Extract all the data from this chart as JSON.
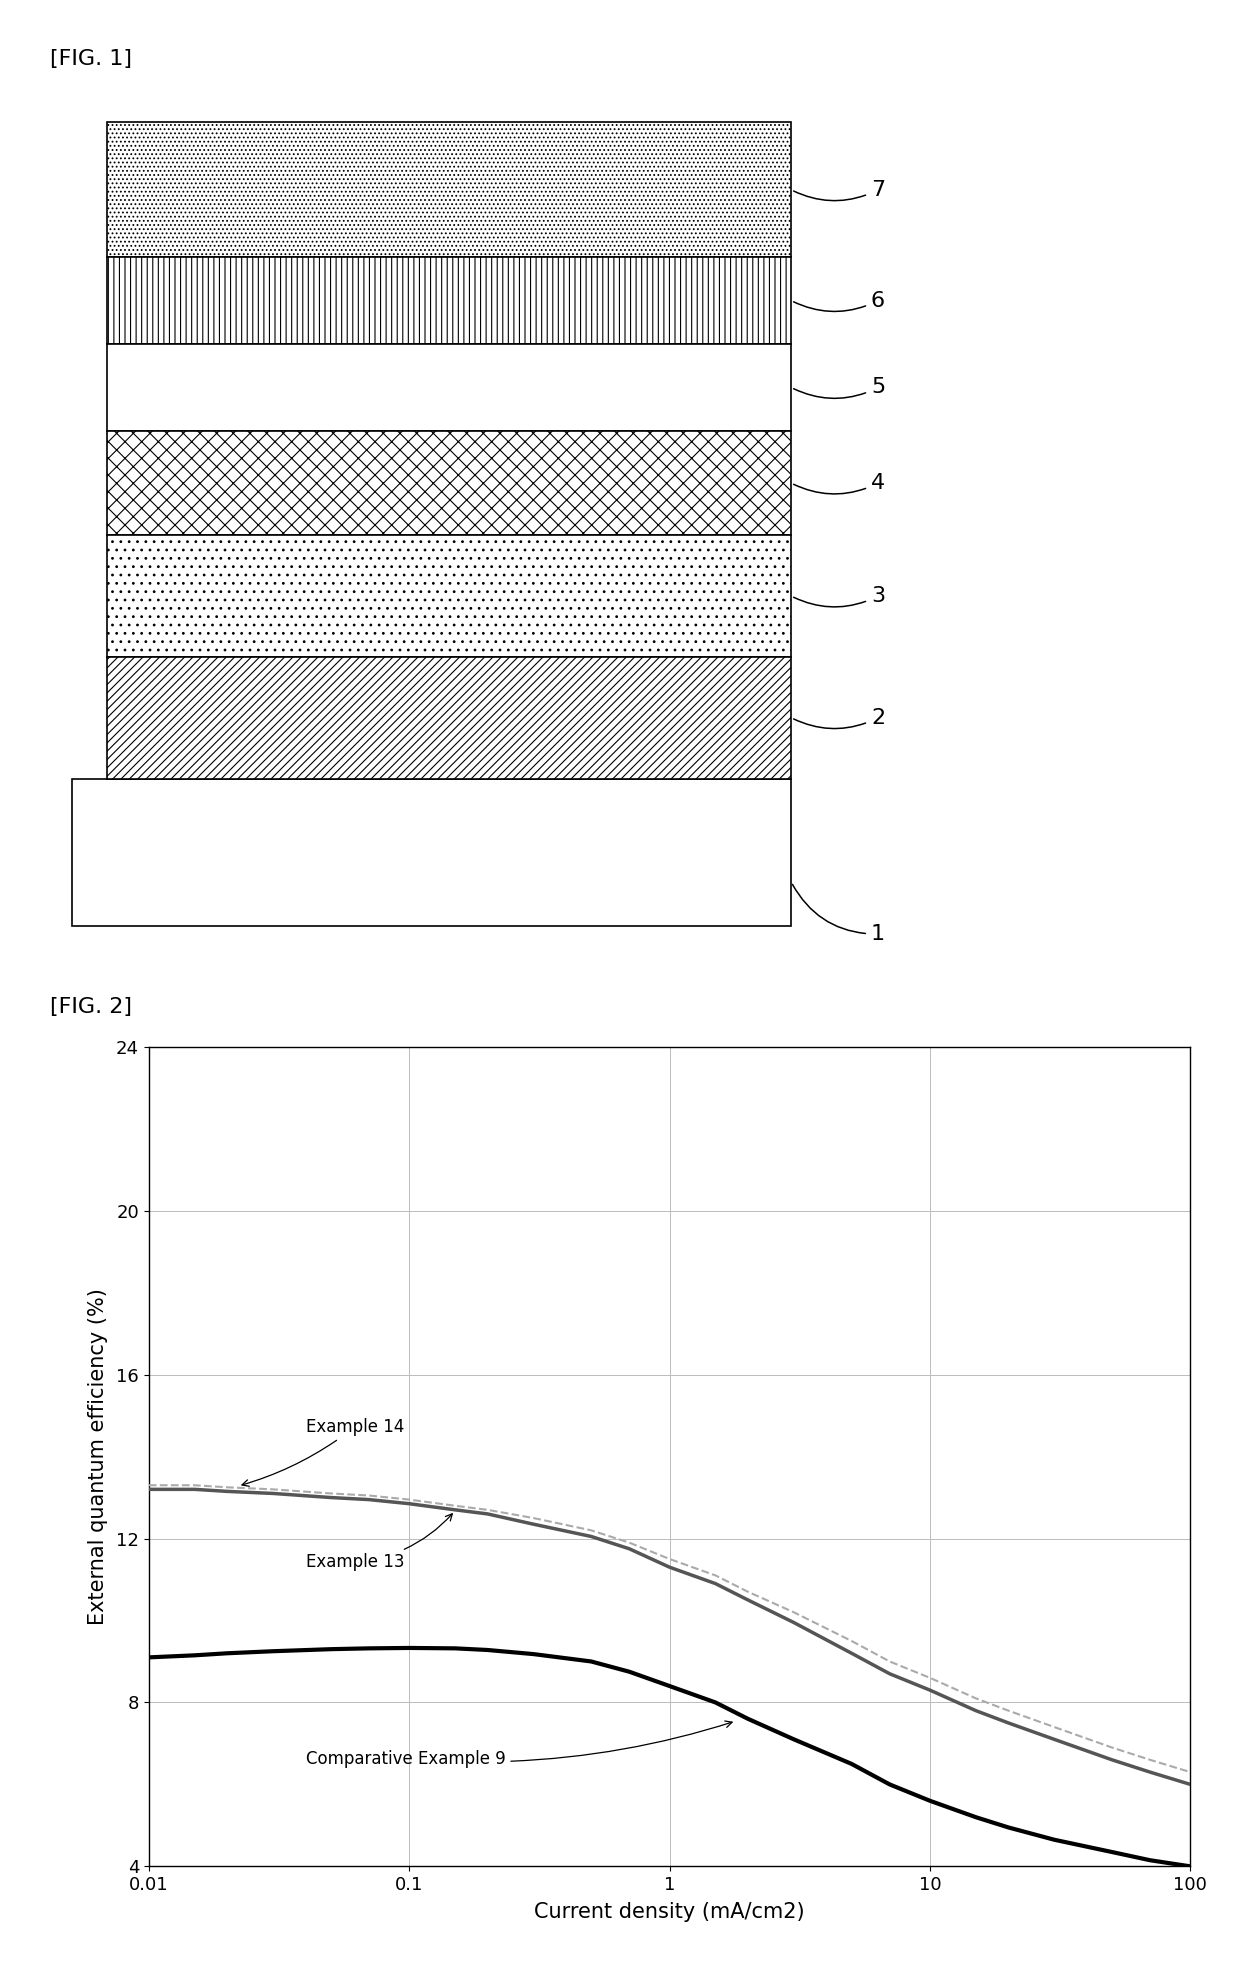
{
  "fig1_label": "[FIG. 1]",
  "fig2_label": "[FIG. 2]",
  "xlabel": "Current density (mA/cm2)",
  "ylabel": "External quantum efficiency (%)",
  "xmin": 0.01,
  "xmax": 100,
  "ymin": 4,
  "ymax": 24,
  "yticks": [
    4,
    8,
    12,
    16,
    20,
    24
  ],
  "xticks": [
    0.01,
    0.1,
    1,
    10,
    100
  ],
  "series": [
    {
      "label": "Example 14",
      "color": "#aaaaaa",
      "linewidth": 1.5,
      "style": "--",
      "x": [
        0.01,
        0.015,
        0.02,
        0.03,
        0.05,
        0.07,
        0.1,
        0.15,
        0.2,
        0.3,
        0.5,
        0.7,
        1.0,
        1.5,
        2.0,
        3.0,
        5.0,
        7.0,
        10.0,
        15.0,
        20.0,
        30.0,
        50.0,
        70.0,
        100.0
      ],
      "y": [
        13.3,
        13.3,
        13.25,
        13.2,
        13.1,
        13.05,
        12.95,
        12.8,
        12.7,
        12.5,
        12.2,
        11.9,
        11.5,
        11.1,
        10.7,
        10.2,
        9.5,
        9.0,
        8.6,
        8.1,
        7.8,
        7.4,
        6.9,
        6.6,
        6.3
      ]
    },
    {
      "label": "Example 13",
      "color": "#555555",
      "linewidth": 2.5,
      "style": "-",
      "x": [
        0.01,
        0.015,
        0.02,
        0.03,
        0.05,
        0.07,
        0.1,
        0.15,
        0.2,
        0.3,
        0.5,
        0.7,
        1.0,
        1.5,
        2.0,
        3.0,
        5.0,
        7.0,
        10.0,
        15.0,
        20.0,
        30.0,
        50.0,
        70.0,
        100.0
      ],
      "y": [
        13.2,
        13.2,
        13.15,
        13.1,
        13.0,
        12.95,
        12.85,
        12.7,
        12.6,
        12.35,
        12.05,
        11.75,
        11.3,
        10.9,
        10.5,
        9.95,
        9.2,
        8.7,
        8.3,
        7.8,
        7.5,
        7.1,
        6.6,
        6.3,
        6.0
      ]
    },
    {
      "label": "Comparative Example 9",
      "color": "#000000",
      "linewidth": 3.0,
      "style": "-",
      "x": [
        0.01,
        0.015,
        0.02,
        0.03,
        0.05,
        0.07,
        0.1,
        0.15,
        0.2,
        0.3,
        0.5,
        0.7,
        1.0,
        1.5,
        2.0,
        3.0,
        5.0,
        7.0,
        10.0,
        15.0,
        20.0,
        30.0,
        50.0,
        70.0,
        100.0
      ],
      "y": [
        9.1,
        9.15,
        9.2,
        9.25,
        9.3,
        9.32,
        9.33,
        9.32,
        9.28,
        9.18,
        9.0,
        8.75,
        8.4,
        8.0,
        7.6,
        7.1,
        6.5,
        6.0,
        5.6,
        5.2,
        4.95,
        4.65,
        4.35,
        4.15,
        4.0
      ]
    }
  ]
}
